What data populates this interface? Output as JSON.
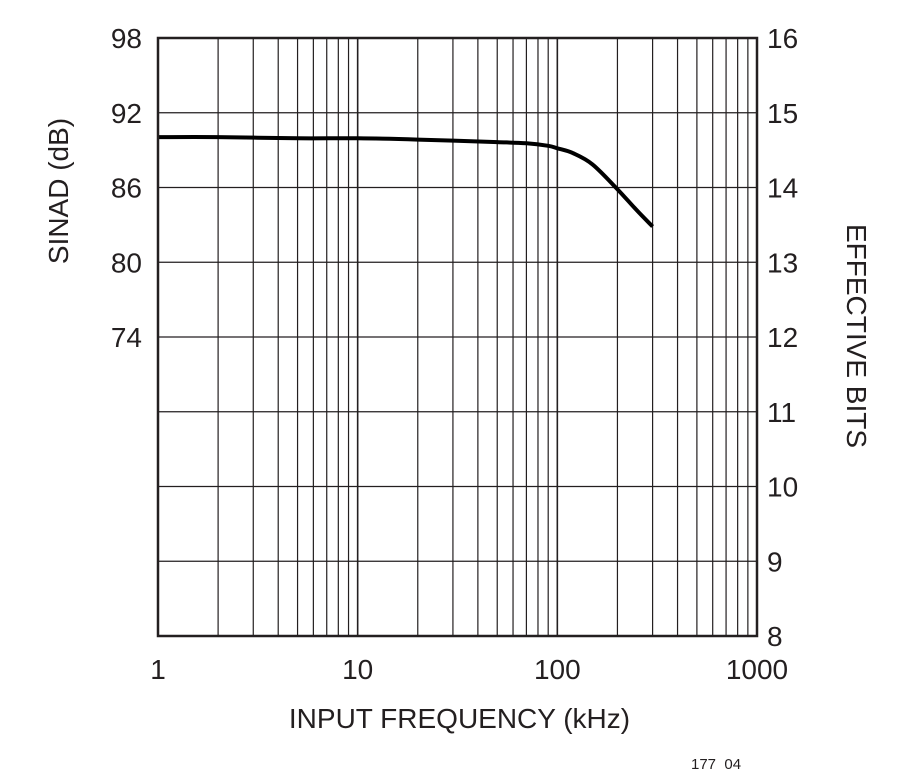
{
  "chart_data": {
    "type": "line",
    "title": "",
    "xlabel": "INPUT FREQUENCY (kHz)",
    "ylabel": "SINAD (dB)",
    "y2label": "EFFECTIVE BITS",
    "x_scale": "log",
    "xlim": [
      1,
      1000
    ],
    "x_ticks": [
      "1",
      "10",
      "100",
      "1000"
    ],
    "y2lim": [
      8,
      16
    ],
    "y2_ticks": [
      "8",
      "9",
      "10",
      "11",
      "12",
      "13",
      "14",
      "15",
      "16"
    ],
    "y_ticks": [
      {
        "label": "98",
        "effective_bits": 16
      },
      {
        "label": "92",
        "effective_bits": 15
      },
      {
        "label": "86",
        "effective_bits": 14
      },
      {
        "label": "80",
        "effective_bits": 13
      },
      {
        "label": "74",
        "effective_bits": 12
      }
    ],
    "grid": true,
    "series": [
      {
        "color": "#000000",
        "x": [
          1,
          2,
          5,
          10,
          20,
          50,
          70,
          90,
          100,
          120,
          150,
          200,
          250,
          300
        ],
        "y": [
          90.1,
          90.1,
          90.0,
          90.0,
          89.9,
          89.7,
          89.6,
          89.4,
          89.2,
          88.8,
          87.9,
          85.9,
          84.2,
          82.9
        ]
      }
    ]
  },
  "figure_id": "177  04"
}
